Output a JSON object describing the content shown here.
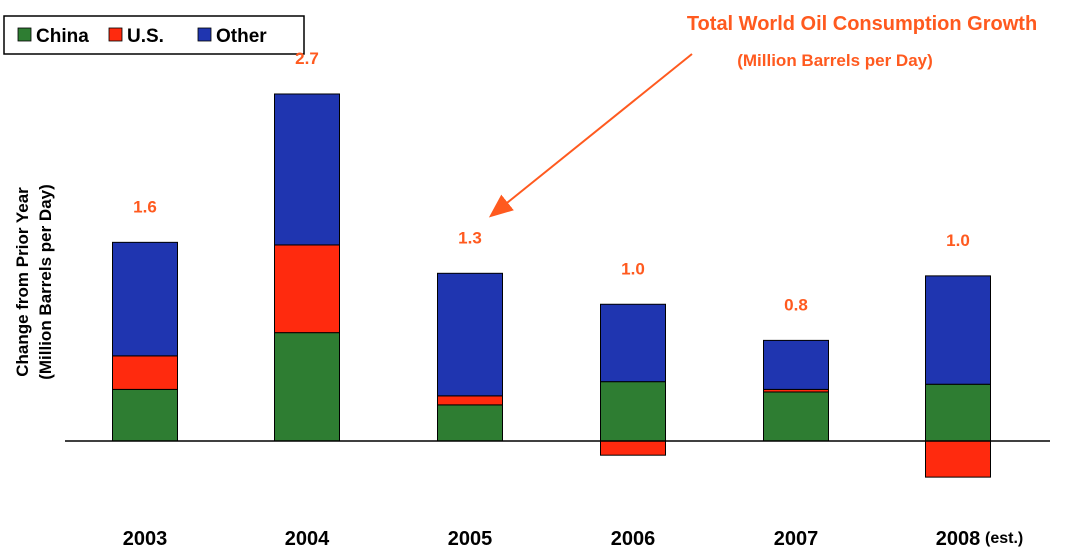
{
  "chart_data": {
    "type": "bar",
    "stacked": true,
    "title": "Total World Oil Consumption Growth",
    "subtitle": "(Million Barrels per Day)",
    "ylabel_line1": "Change from Prior Year",
    "ylabel_line2": "(Million Barrels per Day)",
    "categories": [
      "2003",
      "2004",
      "2005",
      "2006",
      "2007",
      "2008"
    ],
    "category_suffix": {
      "2008": "(est.)"
    },
    "series": [
      {
        "name": "China",
        "color": "#2e7d32",
        "values": [
          0.4,
          0.84,
          0.28,
          0.46,
          0.38,
          0.44
        ]
      },
      {
        "name": "U.S.",
        "color": "#ff2a0e",
        "values": [
          0.26,
          0.68,
          0.07,
          -0.11,
          0.02,
          -0.28
        ]
      },
      {
        "name": "Other",
        "color": "#1f35b0",
        "values": [
          0.88,
          1.17,
          0.95,
          0.6,
          0.38,
          0.84
        ]
      }
    ],
    "totals": [
      "1.6",
      "2.7",
      "1.3",
      "1.0",
      "0.8",
      "1.0"
    ],
    "ylim": [
      -0.5,
      2.8
    ],
    "grid": false,
    "legend_position": "top-left",
    "annotation_arrow": {
      "from": "title",
      "to": "2005 total"
    }
  }
}
